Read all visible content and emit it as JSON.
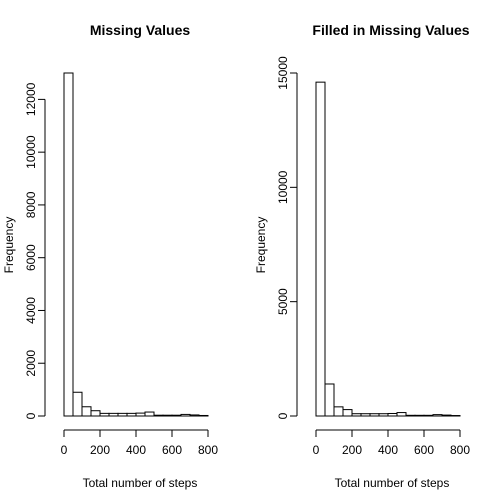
{
  "chart_data": [
    {
      "type": "bar",
      "title": "Missing Values",
      "xlabel": "Total number of steps",
      "ylabel": "Frequency",
      "bin_width": 50,
      "bin_start": 0,
      "values": [
        13000,
        900,
        350,
        200,
        100,
        100,
        100,
        100,
        110,
        150,
        30,
        30,
        30,
        60,
        40,
        20
      ],
      "xticks": [
        0,
        200,
        400,
        600,
        800
      ],
      "yticks": [
        0,
        2000,
        4000,
        6000,
        8000,
        10000,
        12000
      ],
      "xlim": [
        0,
        800
      ],
      "ylim": [
        0,
        13000
      ]
    },
    {
      "type": "bar",
      "title": "Filled in Missing Values",
      "xlabel": "Total number of steps",
      "ylabel": "Frequency",
      "bin_width": 50,
      "bin_start": 0,
      "values": [
        14600,
        1400,
        400,
        280,
        100,
        100,
        100,
        100,
        110,
        150,
        30,
        30,
        30,
        60,
        40,
        20
      ],
      "xticks": [
        0,
        200,
        400,
        600,
        800
      ],
      "yticks": [
        0,
        5000,
        10000,
        15000
      ],
      "xlim": [
        0,
        800
      ],
      "ylim": [
        0,
        15000
      ]
    }
  ]
}
